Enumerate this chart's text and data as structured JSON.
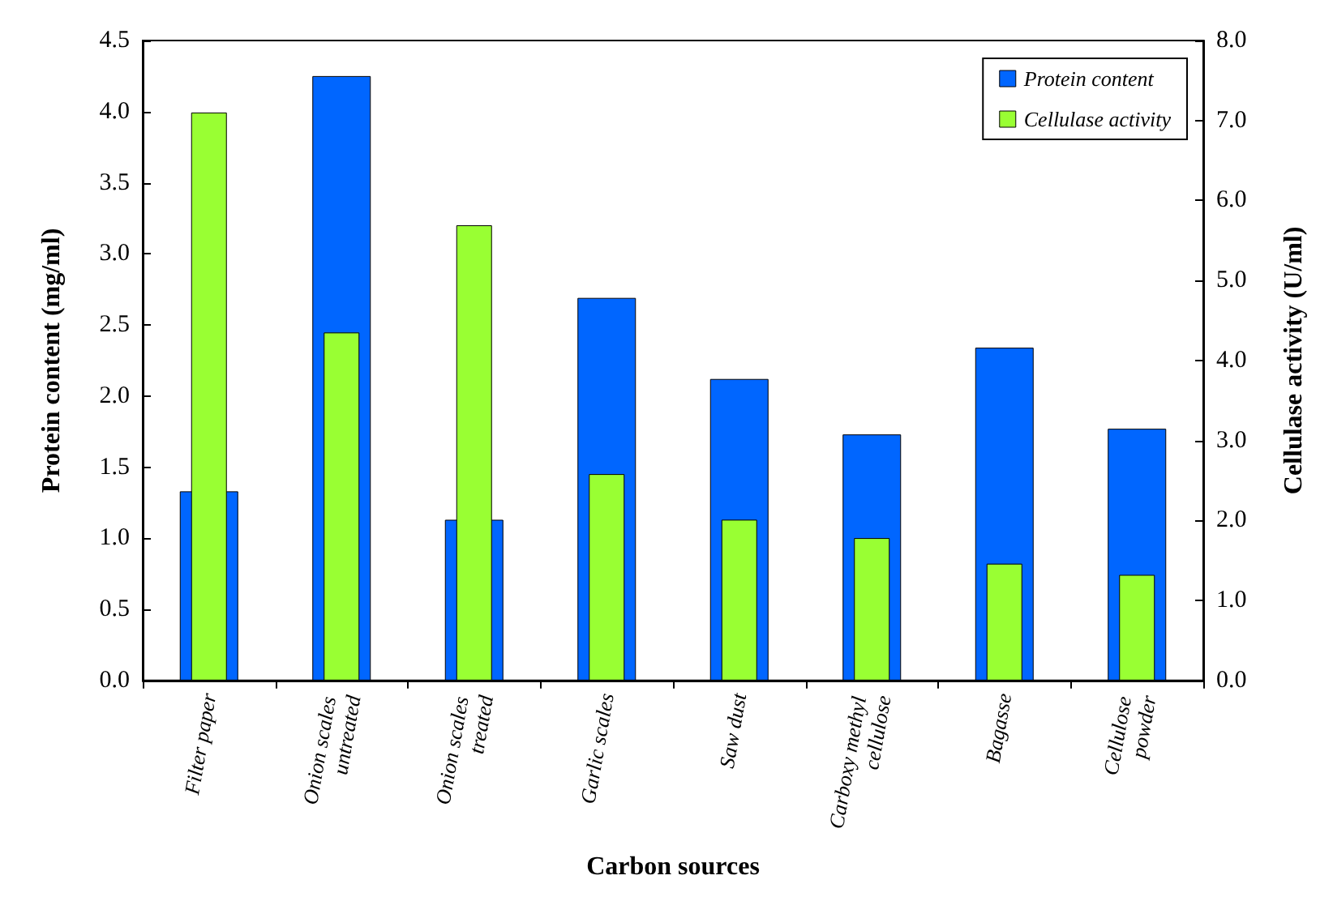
{
  "chart_data": {
    "type": "bar",
    "xlabel": "Carbon sources",
    "ylabel": "Protein content (mg/ml)",
    "y2label": "Cellulase activity (U/ml)",
    "categories": [
      "Filter paper",
      "Onion scales untreated",
      "Onion scales treated",
      "Garlic scales",
      "Saw dust",
      "Carboxy methyl cellulose",
      "Bagasse",
      "Cellulose powder"
    ],
    "series": [
      {
        "name": "Protein content",
        "color": "#0066ff",
        "values": [
          1.33,
          4.25,
          1.13,
          2.69,
          2.12,
          1.73,
          2.34,
          1.77
        ]
      },
      {
        "name": "Cellulase activity",
        "color": "#99ff33",
        "axis": "y2",
        "values": [
          7.1,
          4.35,
          5.69,
          2.58,
          2.01,
          1.78,
          1.46,
          1.32
        ]
      }
    ],
    "ylim": [
      0,
      4.5
    ],
    "yticks": [
      {
        "value": 0,
        "label": "0.0"
      },
      {
        "value": 0.5,
        "label": "0.5"
      },
      {
        "value": 1,
        "label": "1.0"
      },
      {
        "value": 1.5,
        "label": "1.5"
      },
      {
        "value": 2,
        "label": "2.0"
      },
      {
        "value": 2.5,
        "label": "2.5"
      },
      {
        "value": 3,
        "label": "3.0"
      },
      {
        "value": 3.5,
        "label": "3.5"
      },
      {
        "value": 4,
        "label": "4.0"
      },
      {
        "value": 4.5,
        "label": "4.5"
      }
    ],
    "y2lim": [
      0,
      8
    ],
    "y2ticks": [
      {
        "value": 0,
        "label": "0.0"
      },
      {
        "value": 1,
        "label": "1.0"
      },
      {
        "value": 2,
        "label": "2.0"
      },
      {
        "value": 3,
        "label": "3.0"
      },
      {
        "value": 4,
        "label": "4.0"
      },
      {
        "value": 5,
        "label": "5.0"
      },
      {
        "value": 6,
        "label": "6.0"
      },
      {
        "value": 7,
        "label": "7.0"
      },
      {
        "value": 8,
        "label": "8.0"
      }
    ],
    "grid": false,
    "legend": "top right"
  }
}
